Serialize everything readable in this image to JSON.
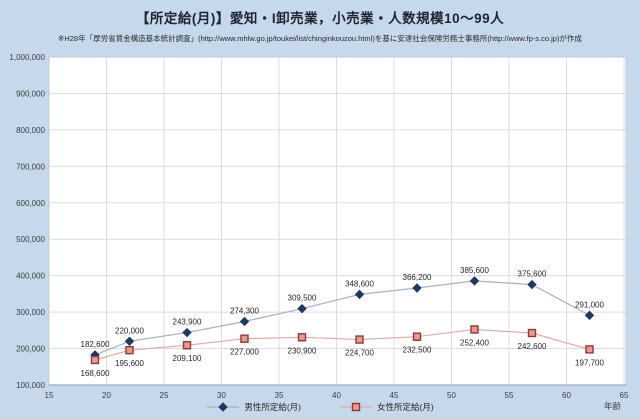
{
  "chart_data": {
    "type": "line",
    "title": "【所定給(月)】愛知・I卸売業，小売業・人数規模10〜99人",
    "subtitle": "※H28年「厚労省賃金構造基本統計調査」(http://www.mhlw.go.jp/toukei/list/chinginkouzou.html)を基に安達社会保険労務士事務所(http://www.fp-s.co.jp)が作成",
    "xlabel": "年齢",
    "x": [
      19,
      22,
      27,
      32,
      37,
      42,
      47,
      52,
      57,
      62
    ],
    "series": [
      {
        "name": "男性所定給(月)",
        "values": [
          182600,
          220000,
          243900,
          274300,
          309500,
          348600,
          366200,
          385600,
          375600,
          291000
        ],
        "marker": "diamond",
        "line_color": "#a6b1c2",
        "marker_color": "#1f3864",
        "label_position": "above"
      },
      {
        "name": "女性所定給(月)",
        "values": [
          168600,
          195600,
          209100,
          227000,
          230900,
          224700,
          232500,
          252400,
          242600,
          197700
        ],
        "marker": "square",
        "line_color": "#dcaeaa",
        "marker_color": "#e59a94",
        "marker_border": "#953735",
        "label_position": "below"
      }
    ],
    "x_ticks": [
      15,
      20,
      25,
      30,
      35,
      40,
      45,
      50,
      55,
      60,
      65
    ],
    "y_ticks": [
      100000,
      200000,
      300000,
      400000,
      500000,
      600000,
      700000,
      800000,
      900000,
      1000000
    ],
    "xlim": [
      15,
      65
    ],
    "ylim": [
      100000,
      1000000
    ],
    "grid": true,
    "legend_position": "bottom",
    "colors": {
      "background": "#c5d8ec",
      "plot_background": "#ffffff",
      "plot_border": "#c3cad4",
      "grid": "#dcdcdc",
      "axis": "#9fa8b8",
      "tick_text": "#3f3f3f",
      "label_text": "#262626",
      "title_text": "#1f2430",
      "subtitle_text": "#2b2b2b"
    }
  }
}
